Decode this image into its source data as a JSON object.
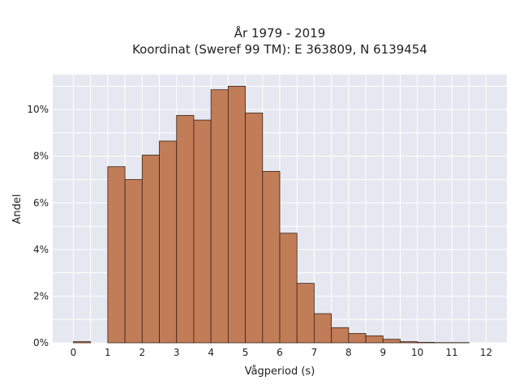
{
  "chart_data": {
    "type": "bar",
    "title": "År 1979 - 2019",
    "subtitle": "Koordinat (Sweref 99 TM): E 363809, N 6139454",
    "xlabel": "Vågperiod (s)",
    "ylabel": "Andel",
    "xlim": [
      -0.6,
      12.6
    ],
    "ylim": [
      0,
      11.5
    ],
    "x_ticks": [
      0,
      1,
      2,
      3,
      4,
      5,
      6,
      7,
      8,
      9,
      10,
      11,
      12
    ],
    "y_ticks": [
      0,
      2,
      4,
      6,
      8,
      10
    ],
    "y_tick_labels": [
      "0%",
      "2%",
      "4%",
      "6%",
      "8%",
      "10%"
    ],
    "bin_width": 0.5,
    "bins": [
      {
        "x0": 0.0,
        "value": 0.05
      },
      {
        "x0": 1.0,
        "value": 7.55
      },
      {
        "x0": 1.5,
        "value": 7.0
      },
      {
        "x0": 2.0,
        "value": 8.05
      },
      {
        "x0": 2.5,
        "value": 8.65
      },
      {
        "x0": 3.0,
        "value": 9.75
      },
      {
        "x0": 3.5,
        "value": 9.55
      },
      {
        "x0": 4.0,
        "value": 10.85
      },
      {
        "x0": 4.5,
        "value": 11.0
      },
      {
        "x0": 5.0,
        "value": 9.85
      },
      {
        "x0": 5.5,
        "value": 7.35
      },
      {
        "x0": 6.0,
        "value": 4.7
      },
      {
        "x0": 6.5,
        "value": 2.55
      },
      {
        "x0": 7.0,
        "value": 1.25
      },
      {
        "x0": 7.5,
        "value": 0.65
      },
      {
        "x0": 8.0,
        "value": 0.4
      },
      {
        "x0": 8.5,
        "value": 0.3
      },
      {
        "x0": 9.0,
        "value": 0.15
      },
      {
        "x0": 9.5,
        "value": 0.05
      },
      {
        "x0": 10.0,
        "value": 0.02
      },
      {
        "x0": 10.5,
        "value": 0.01
      },
      {
        "x0": 11.0,
        "value": 0.01
      }
    ],
    "grid": true,
    "colors": {
      "bar_fill": "#c17c58",
      "bar_stroke": "#3a2418",
      "plot_bg": "#e5e8f0",
      "grid": "#ffffff",
      "text": "#222222"
    }
  }
}
